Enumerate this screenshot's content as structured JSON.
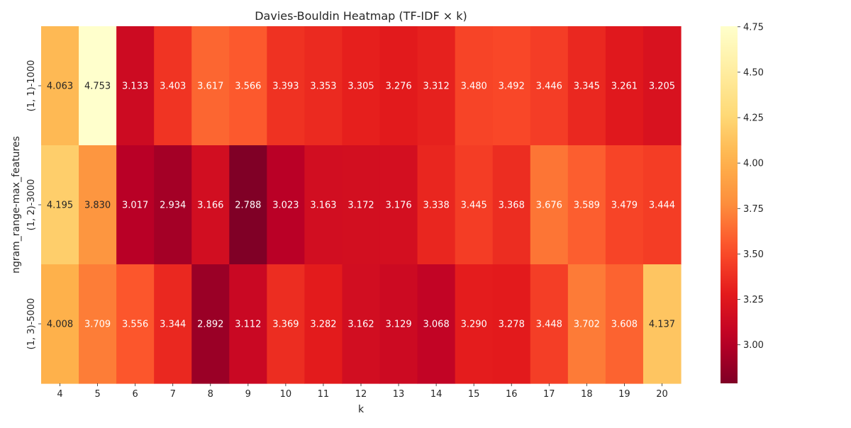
{
  "chart_data": {
    "type": "heatmap",
    "title": "Davies-Bouldin Heatmap (TF-IDF × k)",
    "xlabel": "k",
    "ylabel": "ngram_range-max_features",
    "x": [
      "4",
      "5",
      "6",
      "7",
      "8",
      "9",
      "10",
      "11",
      "12",
      "13",
      "14",
      "15",
      "16",
      "17",
      "18",
      "19",
      "20"
    ],
    "y": [
      "(1, 1)-1000",
      "(1, 2)-3000",
      "(1, 3)-5000"
    ],
    "values": [
      [
        "4.063",
        "4.753",
        "3.133",
        "3.403",
        "3.617",
        "3.566",
        "3.393",
        "3.353",
        "3.305",
        "3.276",
        "3.312",
        "3.480",
        "3.492",
        "3.446",
        "3.345",
        "3.261",
        "3.205"
      ],
      [
        "4.195",
        "3.830",
        "3.017",
        "2.934",
        "3.166",
        "2.788",
        "3.023",
        "3.163",
        "3.172",
        "3.176",
        "3.338",
        "3.445",
        "3.368",
        "3.676",
        "3.589",
        "3.479",
        "3.444"
      ],
      [
        "4.008",
        "3.709",
        "3.556",
        "3.344",
        "2.892",
        "3.112",
        "3.369",
        "3.282",
        "3.162",
        "3.129",
        "3.068",
        "3.290",
        "3.278",
        "3.448",
        "3.702",
        "3.608",
        "4.137"
      ]
    ],
    "colorbar": {
      "colormap": "YlOrRd_r",
      "range": [
        2.788,
        4.753
      ],
      "ticks": [
        "3.00",
        "3.25",
        "3.50",
        "3.75",
        "4.00",
        "4.25",
        "4.50",
        "4.75"
      ]
    },
    "grid": false,
    "legend": "colorbar-right"
  }
}
